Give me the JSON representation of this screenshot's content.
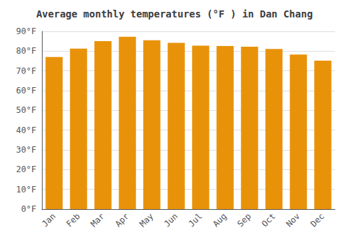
{
  "chart_data": {
    "type": "bar",
    "title": "Average monthly temperatures (°F ) in Dan Chang",
    "categories": [
      "Jan",
      "Feb",
      "Mar",
      "Apr",
      "May",
      "Jun",
      "Jul",
      "Aug",
      "Sep",
      "Oct",
      "Nov",
      "Dec"
    ],
    "values": [
      77.0,
      81.3,
      85.1,
      87.3,
      85.5,
      84.2,
      82.8,
      82.6,
      82.2,
      81.1,
      78.3,
      75.2
    ],
    "color": "#E8920A",
    "ylim": [
      0,
      90
    ],
    "yticks": [
      {
        "value": 0,
        "label": "0°F"
      },
      {
        "value": 10,
        "label": "10°F"
      },
      {
        "value": 20,
        "label": "20°F"
      },
      {
        "value": 30,
        "label": "30°F"
      },
      {
        "value": 40,
        "label": "40°F"
      },
      {
        "value": 50,
        "label": "50°F"
      },
      {
        "value": 60,
        "label": "60°F"
      },
      {
        "value": 70,
        "label": "70°F"
      },
      {
        "value": 80,
        "label": "80°F"
      },
      {
        "value": 90,
        "label": "90°F"
      }
    ],
    "grid": true
  }
}
